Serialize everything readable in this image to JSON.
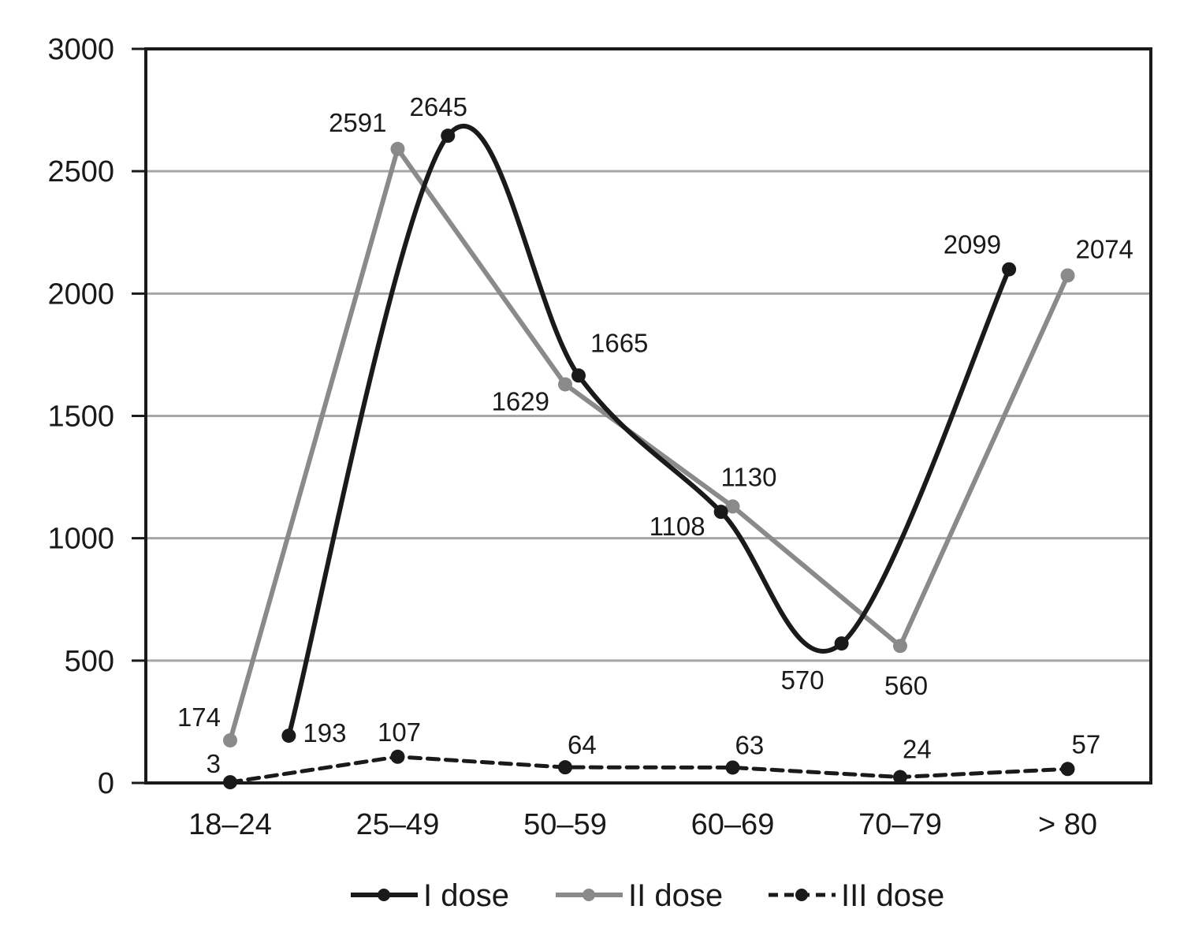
{
  "chart_data": {
    "type": "line",
    "categories": [
      "18–24",
      "25–49",
      "50–59",
      "60–69",
      "70–79",
      "> 80"
    ],
    "ylim": [
      0,
      3000
    ],
    "yticks": [
      0,
      500,
      1000,
      1500,
      2000,
      2500,
      3000
    ],
    "grid": true,
    "legend_position": "bottom",
    "series": [
      {
        "name": "I dose",
        "color": "#1a1a1a",
        "style": "solid-smooth",
        "points": [
          {
            "x": 0.35,
            "y": 193,
            "label": "193"
          },
          {
            "x": 1.3,
            "y": 2645,
            "label": "2645"
          },
          {
            "x": 2.08,
            "y": 1665,
            "label": "1665"
          },
          {
            "x": 2.93,
            "y": 1108,
            "label": "1108"
          },
          {
            "x": 3.65,
            "y": 570,
            "label": "570"
          },
          {
            "x": 4.65,
            "y": 2099,
            "label": "2099"
          }
        ]
      },
      {
        "name": "II dose",
        "color": "#8a8a8a",
        "style": "solid",
        "points": [
          {
            "x": 0,
            "y": 174,
            "label": "174"
          },
          {
            "x": 1,
            "y": 2591,
            "label": "2591"
          },
          {
            "x": 2,
            "y": 1629,
            "label": "1629"
          },
          {
            "x": 3,
            "y": 1130,
            "label": "1130"
          },
          {
            "x": 4,
            "y": 560,
            "label": "560"
          },
          {
            "x": 5,
            "y": 2074,
            "label": "2074"
          }
        ]
      },
      {
        "name": "III dose",
        "color": "#1a1a1a",
        "style": "dashed",
        "points": [
          {
            "x": 0,
            "y": 3,
            "label": "3"
          },
          {
            "x": 1,
            "y": 107,
            "label": "107"
          },
          {
            "x": 2,
            "y": 64,
            "label": "64"
          },
          {
            "x": 3,
            "y": 63,
            "label": "63"
          },
          {
            "x": 4,
            "y": 24,
            "label": "24"
          },
          {
            "x": 5,
            "y": 57,
            "label": "57"
          }
        ]
      }
    ]
  }
}
